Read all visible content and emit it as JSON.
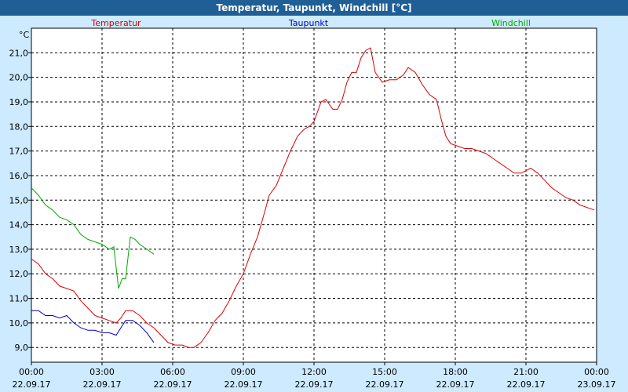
{
  "title": "Temperatur, Taupunkt, Windchill [°C]",
  "unit_label": "°C",
  "colors": {
    "Temperatur": "#dd0000",
    "Taupunkt": "#0000cc",
    "Windchill": "#00aa00"
  },
  "chart_data": {
    "type": "line",
    "title": "Temperatur, Taupunkt, Windchill [°C]",
    "ylabel": "°C",
    "ylim": [
      8.4,
      22.0
    ],
    "xlim": [
      0,
      24
    ],
    "grid": true,
    "legend_placement": "top",
    "y_ticks": [
      "9,0",
      "10,0",
      "11,0",
      "12,0",
      "13,0",
      "14,0",
      "15,0",
      "16,0",
      "17,0",
      "18,0",
      "19,0",
      "20,0",
      "21,0"
    ],
    "x_ticks": [
      {
        "time": "00:00",
        "date": "22.09.17"
      },
      {
        "time": "03:00",
        "date": "22.09.17"
      },
      {
        "time": "06:00",
        "date": "22.09.17"
      },
      {
        "time": "09:00",
        "date": "22.09.17"
      },
      {
        "time": "12:00",
        "date": "22.09.17"
      },
      {
        "time": "15:00",
        "date": "22.09.17"
      },
      {
        "time": "18:00",
        "date": "22.09.17"
      },
      {
        "time": "21:00",
        "date": "22.09.17"
      },
      {
        "time": "00:00",
        "date": "23.09.17"
      }
    ],
    "series": [
      {
        "name": "Temperatur",
        "color": "#dd0000",
        "x": [
          0,
          0.3,
          0.6,
          0.9,
          1.2,
          1.5,
          1.8,
          2.1,
          2.4,
          2.7,
          3.0,
          3.3,
          3.6,
          3.8,
          4.0,
          4.3,
          4.6,
          4.9,
          5.2,
          5.5,
          5.8,
          6.1,
          6.4,
          6.7,
          6.9,
          7.2,
          7.5,
          7.8,
          8.1,
          8.4,
          8.7,
          9.0,
          9.3,
          9.6,
          9.9,
          10.1,
          10.4,
          10.7,
          11.0,
          11.3,
          11.6,
          11.8,
          12.0,
          12.3,
          12.5,
          12.8,
          13.0,
          13.2,
          13.4,
          13.6,
          13.8,
          14.0,
          14.2,
          14.4,
          14.6,
          14.9,
          15.2,
          15.5,
          15.8,
          16.0,
          16.3,
          16.6,
          16.9,
          17.2,
          17.4,
          17.6,
          17.8,
          18.1,
          18.4,
          18.7,
          19.0,
          19.3,
          19.6,
          19.9,
          20.2,
          20.5,
          20.8,
          21.0,
          21.2,
          21.5,
          21.8,
          22.1,
          22.4,
          22.7,
          23.0,
          23.3,
          23.6,
          23.9
        ],
        "values": [
          12.6,
          12.4,
          12.0,
          11.8,
          11.5,
          11.4,
          11.3,
          10.9,
          10.6,
          10.3,
          10.2,
          10.1,
          10.0,
          10.2,
          10.5,
          10.5,
          10.3,
          10.0,
          9.8,
          9.5,
          9.2,
          9.1,
          9.1,
          9.0,
          9.0,
          9.2,
          9.6,
          10.1,
          10.4,
          10.9,
          11.5,
          12.0,
          12.8,
          13.5,
          14.5,
          15.2,
          15.6,
          16.3,
          17.0,
          17.6,
          17.9,
          18.0,
          18.2,
          19.0,
          19.1,
          18.7,
          18.7,
          19.1,
          19.8,
          20.2,
          20.2,
          20.8,
          21.1,
          21.2,
          20.2,
          19.8,
          19.9,
          19.9,
          20.1,
          20.4,
          20.2,
          19.7,
          19.3,
          19.1,
          18.3,
          17.6,
          17.3,
          17.2,
          17.1,
          17.1,
          17.0,
          16.9,
          16.7,
          16.5,
          16.3,
          16.1,
          16.1,
          16.2,
          16.3,
          16.1,
          15.8,
          15.5,
          15.3,
          15.1,
          15.0,
          14.8,
          14.7,
          14.6
        ]
      },
      {
        "name": "Taupunkt",
        "color": "#0000cc",
        "x": [
          0,
          0.3,
          0.6,
          0.9,
          1.2,
          1.5,
          1.8,
          2.1,
          2.4,
          2.7,
          3.0,
          3.3,
          3.6,
          3.8,
          4.0,
          4.3,
          4.6,
          4.9,
          5.2
        ],
        "values": [
          10.5,
          10.5,
          10.3,
          10.3,
          10.2,
          10.3,
          10.0,
          9.8,
          9.7,
          9.7,
          9.6,
          9.6,
          9.5,
          9.8,
          10.1,
          10.1,
          9.9,
          9.6,
          9.2
        ]
      },
      {
        "name": "Windchill",
        "color": "#00aa00",
        "x": [
          0,
          0.3,
          0.6,
          0.9,
          1.2,
          1.5,
          1.8,
          2.1,
          2.4,
          2.7,
          3.0,
          3.3,
          3.5,
          3.7,
          3.85,
          4.0,
          4.2,
          4.4,
          4.6,
          4.9,
          5.2
        ],
        "values": [
          15.5,
          15.2,
          14.8,
          14.6,
          14.3,
          14.2,
          14.0,
          13.6,
          13.4,
          13.3,
          13.2,
          13.0,
          13.1,
          11.4,
          11.8,
          11.8,
          13.5,
          13.4,
          13.2,
          13.0,
          12.8
        ]
      }
    ]
  }
}
